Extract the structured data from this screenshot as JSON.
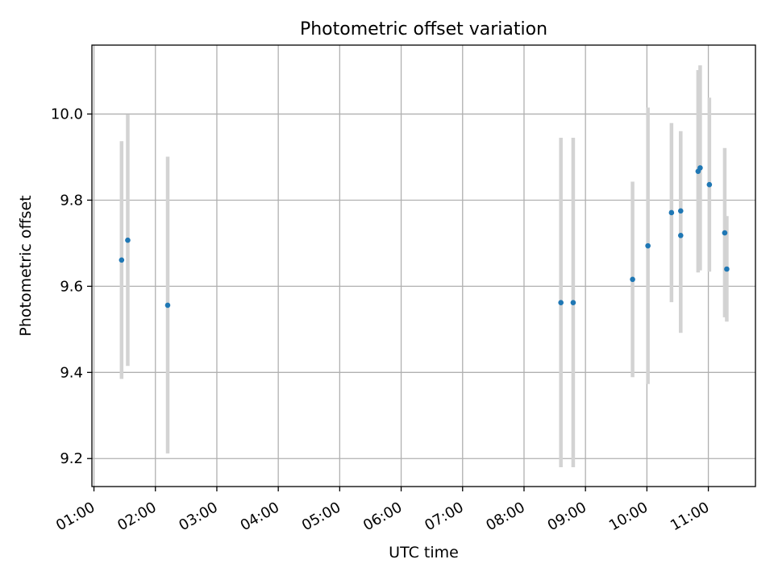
{
  "chart_data": {
    "type": "scatter",
    "title": "Photometric offset variation",
    "xlabel": "UTC time",
    "ylabel": "Photometric offset",
    "xlim": [
      "00:58",
      "11:46"
    ],
    "ylim": [
      9.135,
      10.16
    ],
    "xticks": [
      "01:00",
      "02:00",
      "03:00",
      "04:00",
      "05:00",
      "06:00",
      "07:00",
      "08:00",
      "09:00",
      "10:00",
      "11:00"
    ],
    "yticks": [
      9.2,
      9.4,
      9.6,
      9.8,
      10.0
    ],
    "grid": true,
    "colors": {
      "point": "#1f77b4",
      "errorbar": "#d3d3d3",
      "grid": "#b0b0b0"
    },
    "points": [
      {
        "x": "01:27",
        "y": 9.661,
        "ymin": 9.385,
        "ymax": 9.937
      },
      {
        "x": "01:33",
        "y": 9.707,
        "ymin": 9.415,
        "ymax": 9.999
      },
      {
        "x": "02:12",
        "y": 9.556,
        "ymin": 9.212,
        "ymax": 9.901
      },
      {
        "x": "08:36",
        "y": 9.562,
        "ymin": 9.18,
        "ymax": 9.945
      },
      {
        "x": "08:48",
        "y": 9.562,
        "ymin": 9.18,
        "ymax": 9.945
      },
      {
        "x": "09:46",
        "y": 9.616,
        "ymin": 9.389,
        "ymax": 9.843
      },
      {
        "x": "10:01",
        "y": 9.694,
        "ymin": 9.373,
        "ymax": 10.015
      },
      {
        "x": "10:24",
        "y": 9.771,
        "ymin": 9.563,
        "ymax": 9.979
      },
      {
        "x": "10:33",
        "y": 9.718,
        "ymin": 9.492,
        "ymax": 9.96
      },
      {
        "x": "10:33",
        "y": 9.775,
        "ymin": 9.492,
        "ymax": 9.96
      },
      {
        "x": "10:50",
        "y": 9.867,
        "ymin": 9.632,
        "ymax": 10.102
      },
      {
        "x": "10:52",
        "y": 9.875,
        "ymin": 9.637,
        "ymax": 10.113
      },
      {
        "x": "11:01",
        "y": 9.836,
        "ymin": 9.634,
        "ymax": 10.038
      },
      {
        "x": "11:16",
        "y": 9.724,
        "ymin": 9.528,
        "ymax": 9.921
      },
      {
        "x": "11:18",
        "y": 9.64,
        "ymin": 9.518,
        "ymax": 9.763
      }
    ]
  }
}
